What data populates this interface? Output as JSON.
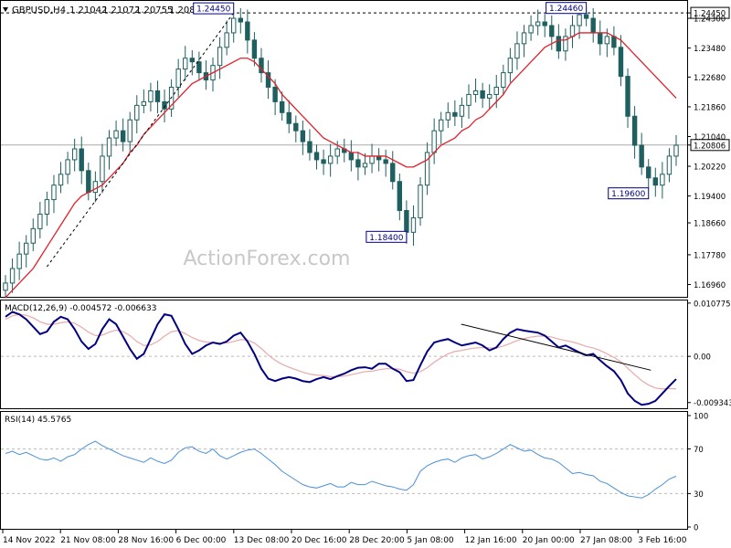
{
  "header": {
    "symbol": "GBPUSD,H4",
    "open": "1.21042",
    "high": "1.21072",
    "low": "1.20755",
    "close": "1.20806"
  },
  "watermark": "ActionForex.com",
  "colors": {
    "price_bars": "#1f5f5f",
    "moving_average": "#e0202c",
    "macd_line": "#000080",
    "macd_signal": "#e8a9a9",
    "rsi_line": "#4a90d9",
    "trendline": "#000000",
    "grid_dash": "#bbbbbb"
  },
  "chart_data": [
    {
      "type": "candlestick",
      "panel": "price",
      "title": "GBPUSD,H4",
      "ylim": [
        1.1662,
        1.2478
      ],
      "y_ticks": [
        "1.24450",
        "1.24300",
        "1.23480",
        "1.22680",
        "1.21860",
        "1.21040",
        "1.20806",
        "1.20220",
        "1.19400",
        "1.18660",
        "1.17780",
        "1.16960"
      ],
      "x_labels": [
        "14 Nov 2022",
        "21 Nov 08:00",
        "28 Nov 16:00",
        "6 Dec 00:00",
        "13 Dec 08:00",
        "20 Dec 16:00",
        "28 Dec 20:00",
        "5 Jan 08:00",
        "12 Jan 16:00",
        "20 Jan 00:00",
        "27 Jan 08:00",
        "3 Feb 16:00"
      ],
      "last_price": "1.20806",
      "resistance_level": "1.24450",
      "annotations": [
        {
          "label": "1.24450",
          "value": 1.2445
        },
        {
          "label": "1.24460",
          "value": 1.2446
        },
        {
          "label": "1.18400",
          "value": 1.184
        },
        {
          "label": "1.19600",
          "value": 1.196
        }
      ],
      "series": [
        {
          "role": "close",
          "values": [
            1.17,
            1.174,
            1.178,
            1.181,
            1.185,
            1.189,
            1.193,
            1.197,
            1.2,
            1.204,
            1.207,
            1.201,
            1.195,
            1.198,
            1.205,
            1.21,
            1.212,
            1.209,
            1.215,
            1.219,
            1.22,
            1.223,
            1.22,
            1.218,
            1.224,
            1.229,
            1.232,
            1.231,
            1.228,
            1.226,
            1.23,
            1.235,
            1.239,
            1.243,
            1.242,
            1.237,
            1.232,
            1.228,
            1.224,
            1.22,
            1.217,
            1.214,
            1.212,
            1.209,
            1.206,
            1.204,
            1.203,
            1.205,
            1.207,
            1.206,
            1.204,
            1.202,
            1.203,
            1.205,
            1.204,
            1.203,
            1.198,
            1.19,
            1.184,
            1.188,
            1.197,
            1.206,
            1.212,
            1.215,
            1.217,
            1.216,
            1.219,
            1.222,
            1.223,
            1.221,
            1.222,
            1.224,
            1.228,
            1.232,
            1.236,
            1.239,
            1.241,
            1.242,
            1.241,
            1.238,
            1.234,
            1.238,
            1.241,
            1.244,
            1.243,
            1.239,
            1.236,
            1.238,
            1.235,
            1.227,
            1.216,
            1.208,
            1.202,
            1.199,
            1.197,
            1.2,
            1.205,
            1.208
          ]
        },
        {
          "name": "",
          "role": "moving_average",
          "values": [
            1.166,
            1.168,
            1.17,
            1.172,
            1.174,
            1.177,
            1.18,
            1.183,
            1.186,
            1.189,
            1.192,
            1.194,
            1.195,
            1.196,
            1.197,
            1.199,
            1.201,
            1.203,
            1.206,
            1.208,
            1.211,
            1.213,
            1.215,
            1.217,
            1.219,
            1.221,
            1.223,
            1.225,
            1.226,
            1.227,
            1.228,
            1.229,
            1.23,
            1.231,
            1.232,
            1.232,
            1.231,
            1.229,
            1.227,
            1.225,
            1.222,
            1.22,
            1.218,
            1.216,
            1.214,
            1.212,
            1.21,
            1.209,
            1.208,
            1.207,
            1.206,
            1.206,
            1.205,
            1.205,
            1.205,
            1.205,
            1.204,
            1.203,
            1.202,
            1.202,
            1.203,
            1.204,
            1.206,
            1.208,
            1.209,
            1.21,
            1.212,
            1.213,
            1.215,
            1.216,
            1.218,
            1.22,
            1.222,
            1.225,
            1.227,
            1.229,
            1.231,
            1.233,
            1.235,
            1.236,
            1.237,
            1.237,
            1.238,
            1.239,
            1.239,
            1.239,
            1.239,
            1.239,
            1.238,
            1.237,
            1.235,
            1.233,
            1.231,
            1.229,
            1.227,
            1.225,
            1.223,
            1.221
          ]
        }
      ]
    },
    {
      "type": "line",
      "panel": "macd",
      "title": "MACD(12,26,9) -0.004572 -0.006633",
      "ylim": [
        -0.0105,
        0.0113
      ],
      "y_ticks": [
        "0.010775",
        "0.00",
        "-0.009343"
      ],
      "trendline": {
        "from": [
          0.6794,
          0.0065
        ],
        "to": [
          0.9432,
          -0.0028
        ]
      },
      "series": [
        {
          "name": "",
          "role": "macd",
          "values": [
            0.008,
            0.009,
            0.0085,
            0.0075,
            0.006,
            0.0045,
            0.005,
            0.007,
            0.008,
            0.0075,
            0.0055,
            0.003,
            0.0015,
            0.0025,
            0.0055,
            0.0075,
            0.0065,
            0.004,
            0.0015,
            -0.0005,
            0.0005,
            0.0035,
            0.0065,
            0.0085,
            0.0082,
            0.0055,
            0.0025,
            0.0005,
            0.0012,
            0.0022,
            0.0028,
            0.0025,
            0.003,
            0.0042,
            0.0048,
            0.003,
            0.0005,
            -0.0025,
            -0.0045,
            -0.005,
            -0.0045,
            -0.0042,
            -0.0045,
            -0.005,
            -0.0052,
            -0.0046,
            -0.0042,
            -0.0046,
            -0.004,
            -0.0035,
            -0.0028,
            -0.0023,
            -0.0022,
            -0.0025,
            -0.0015,
            -0.0015,
            -0.0025,
            -0.0032,
            -0.005,
            -0.0048,
            -0.0018,
            0.001,
            0.0028,
            0.0032,
            0.0035,
            0.0028,
            0.0022,
            0.0025,
            0.0028,
            0.0022,
            0.0012,
            0.0018,
            0.0035,
            0.0048,
            0.0055,
            0.0052,
            0.005,
            0.0048,
            0.0042,
            0.003,
            0.0018,
            0.0022,
            0.0015,
            0.0008,
            0.0002,
            0.0005,
            -0.0008,
            -0.002,
            -0.003,
            -0.0048,
            -0.0075,
            -0.009,
            -0.0098,
            -0.0096,
            -0.009,
            -0.0075,
            -0.006,
            -0.0046
          ]
        },
        {
          "name": "",
          "role": "signal",
          "values": [
            0.0075,
            0.0082,
            0.0085,
            0.0083,
            0.0078,
            0.007,
            0.0065,
            0.0065,
            0.0068,
            0.007,
            0.0067,
            0.0059,
            0.0049,
            0.0042,
            0.0043,
            0.0049,
            0.0053,
            0.005,
            0.0042,
            0.003,
            0.0022,
            0.0023,
            0.003,
            0.0041,
            0.005,
            0.0052,
            0.0046,
            0.0038,
            0.0032,
            0.0029,
            0.0028,
            0.0027,
            0.0027,
            0.003,
            0.0034,
            0.0033,
            0.0027,
            0.0016,
            0.0003,
            -0.0008,
            -0.0016,
            -0.0022,
            -0.0027,
            -0.0032,
            -0.0036,
            -0.0038,
            -0.0039,
            -0.0041,
            -0.0041,
            -0.004,
            -0.0037,
            -0.0034,
            -0.0031,
            -0.003,
            -0.0027,
            -0.0025,
            -0.0025,
            -0.0026,
            -0.0031,
            -0.0034,
            -0.0031,
            -0.0023,
            -0.0012,
            -0.0003,
            0.0005,
            0.001,
            0.0012,
            0.0015,
            0.0017,
            0.0018,
            0.0017,
            0.0017,
            0.0021,
            0.0026,
            0.0032,
            0.0036,
            0.0039,
            0.0041,
            0.0041,
            0.0039,
            0.0035,
            0.0032,
            0.0029,
            0.0025,
            0.002,
            0.0017,
            0.0012,
            0.0005,
            -0.0002,
            -0.0011,
            -0.0024,
            -0.0037,
            -0.0049,
            -0.0058,
            -0.0064,
            -0.0066,
            -0.0065,
            -0.0066
          ]
        }
      ]
    },
    {
      "type": "line",
      "panel": "rsi",
      "title": "RSI(14) 45.5765",
      "ylim": [
        0,
        100
      ],
      "y_ticks": [
        "100",
        "70",
        "30",
        "0"
      ],
      "levels": [
        70,
        30
      ],
      "series": [
        {
          "name": "",
          "role": "rsi",
          "values": [
            66,
            68,
            65,
            67,
            64,
            61,
            60,
            62,
            59,
            63,
            65,
            70,
            74,
            77,
            73,
            70,
            67,
            64,
            62,
            60,
            58,
            62,
            59,
            57,
            60,
            67,
            71,
            72,
            68,
            66,
            70,
            64,
            61,
            64,
            67,
            69,
            70,
            66,
            61,
            56,
            50,
            46,
            42,
            38,
            36,
            35,
            37,
            39,
            36,
            36,
            40,
            38,
            38,
            41,
            39,
            37,
            36,
            34,
            33,
            38,
            50,
            55,
            58,
            60,
            61,
            58,
            62,
            64,
            65,
            61,
            63,
            66,
            70,
            74,
            71,
            68,
            69,
            65,
            62,
            61,
            58,
            53,
            48,
            49,
            47,
            46,
            41,
            39,
            35,
            31,
            28,
            27,
            26,
            29,
            34,
            38,
            43,
            45.6
          ]
        }
      ]
    }
  ]
}
